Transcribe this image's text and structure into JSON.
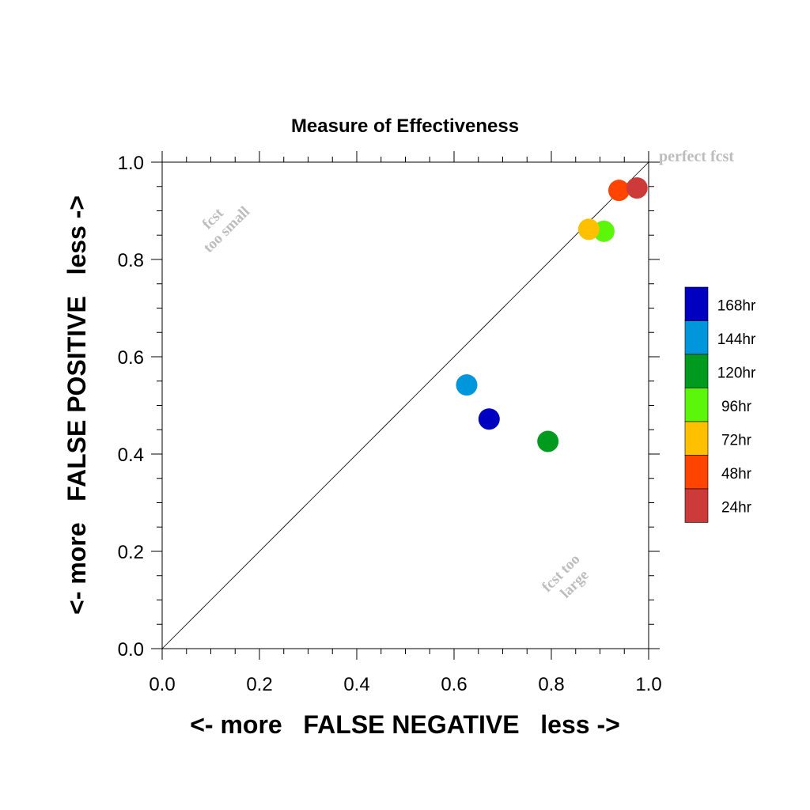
{
  "chart_data": {
    "type": "scatter",
    "title": "Measure of Effectiveness",
    "xlabel": "<- more   FALSE NEGATIVE   less ->",
    "ylabel": "<- more   FALSE POSITIVE   less ->",
    "xlim": [
      0,
      1
    ],
    "ylim": [
      0,
      1
    ],
    "x_ticks": [
      "0.0",
      "0.2",
      "0.4",
      "0.6",
      "0.8",
      "1.0"
    ],
    "y_ticks": [
      "0.0",
      "0.2",
      "0.4",
      "0.6",
      "0.8",
      "1.0"
    ],
    "grid": false,
    "legend_position": "right",
    "diagonal_line": true,
    "series": [
      {
        "name": "168hr",
        "color": "#0000c0",
        "x": 0.672,
        "y": 0.472
      },
      {
        "name": "144hr",
        "color": "#0096dc",
        "x": 0.626,
        "y": 0.542
      },
      {
        "name": "120hr",
        "color": "#009a1e",
        "x": 0.793,
        "y": 0.426
      },
      {
        "name": "96hr",
        "color": "#5cf60a",
        "x": 0.908,
        "y": 0.858
      },
      {
        "name": "72hr",
        "color": "#ffc000",
        "x": 0.877,
        "y": 0.862
      },
      {
        "name": "48hr",
        "color": "#ff4400",
        "x": 0.939,
        "y": 0.942
      },
      {
        "name": "24hr",
        "color": "#cc3a3a",
        "x": 0.976,
        "y": 0.947
      }
    ],
    "annotations": {
      "top_left": [
        "fcst",
        "too small"
      ],
      "bottom_right": [
        "fcst too",
        "large"
      ],
      "corner": "perfect fcst"
    }
  }
}
